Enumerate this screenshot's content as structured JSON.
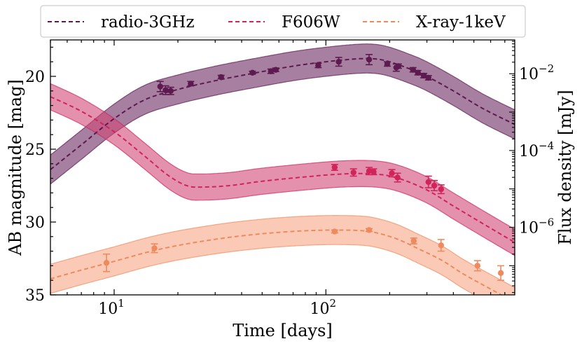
{
  "chart_data": {
    "type": "line",
    "xlabel": "Time [days]",
    "ylabel_left": "AB magnitude [mag]",
    "ylabel_right": "Flux density [mJy]",
    "xscale": "log",
    "xlim": [
      5,
      780
    ],
    "ylim_left": [
      35,
      17.5
    ],
    "ylim_right_log10": [
      -7.76,
      -1.12
    ],
    "x_tick_labels": [
      {
        "value": 10,
        "base": "10",
        "exp": "1"
      },
      {
        "value": 100,
        "base": "10",
        "exp": "2"
      }
    ],
    "y_left_ticks": [
      20,
      25,
      30,
      35
    ],
    "y_left_tick_labels": [
      "20",
      "25",
      "30",
      "35"
    ],
    "y_right_tick_labels": [
      {
        "log10": -2,
        "base": "10",
        "exp": "−2"
      },
      {
        "log10": -4,
        "base": "10",
        "exp": "−4"
      },
      {
        "log10": -6,
        "base": "10",
        "exp": "−6"
      }
    ],
    "grid": false,
    "legend_position": "top-center-outside",
    "series": [
      {
        "name": "radio-3GHz",
        "color": "#5c1a4e",
        "band_color": "#6b2a62",
        "model": {
          "x": [
            5,
            7,
            10,
            14,
            20,
            30,
            45,
            70,
            100,
            140,
            170,
            200,
            250,
            300,
            400,
            550,
            780
          ],
          "y": [
            26.4,
            24.7,
            22.9,
            21.6,
            20.9,
            20.3,
            19.8,
            19.3,
            19.0,
            18.8,
            18.8,
            19.0,
            19.5,
            20.0,
            21.0,
            22.2,
            23.3
          ]
        },
        "band_halfwidth": 1.0,
        "points": {
          "x": [
            16.5,
            17.5,
            18.5,
            23,
            32,
            45,
            55,
            58,
            92,
            115,
            160,
            195,
            215,
            220,
            258,
            272,
            290,
            305
          ],
          "y": [
            20.7,
            20.95,
            21.0,
            20.5,
            20.05,
            19.75,
            19.65,
            19.55,
            19.25,
            19.0,
            18.85,
            19.15,
            19.4,
            19.3,
            19.55,
            19.75,
            19.95,
            20.1
          ],
          "err": [
            0.35,
            0.3,
            0.25,
            0.15,
            0.12,
            0.1,
            0.15,
            0.12,
            0.15,
            0.3,
            0.35,
            0.15,
            0.25,
            0.15,
            0.15,
            0.15,
            0.15,
            0.15
          ]
        }
      },
      {
        "name": "F606W",
        "color": "#d0245a",
        "band_color": "#d24878",
        "model": {
          "x": [
            5,
            7,
            10,
            14,
            18,
            22,
            26,
            35,
            50,
            80,
            120,
            170,
            220,
            300,
            400,
            550,
            780
          ],
          "y": [
            21.4,
            22.4,
            23.8,
            25.5,
            26.8,
            27.5,
            27.6,
            27.5,
            27.2,
            26.9,
            26.7,
            26.7,
            27.0,
            27.8,
            28.9,
            30.1,
            31.4
          ]
        },
        "band_halfwidth": 0.9,
        "points": {
          "x": [
            110,
            135,
            160,
            168,
            205,
            218,
            305,
            325,
            350
          ],
          "y": [
            26.25,
            26.6,
            26.5,
            26.55,
            26.65,
            26.95,
            27.25,
            27.5,
            27.75
          ],
          "err": [
            0.2,
            0.25,
            0.25,
            0.2,
            0.25,
            0.3,
            0.4,
            0.35,
            0.3
          ]
        }
      },
      {
        "name": "X-ray-1keV",
        "color": "#ef8a5e",
        "band_color": "#f6a785",
        "model": {
          "x": [
            5,
            7,
            10,
            15,
            22,
            35,
            55,
            80,
            110,
            150,
            180,
            220,
            270,
            350,
            450,
            600,
            780
          ],
          "y": [
            33.9,
            33.3,
            32.7,
            32.0,
            31.5,
            31.05,
            30.75,
            30.6,
            30.55,
            30.6,
            30.8,
            31.2,
            31.8,
            32.6,
            33.6,
            34.6,
            35.5
          ]
        },
        "band_halfwidth": 1.0,
        "points": {
          "x": [
            9.2,
            15.5,
            110,
            160,
            260,
            350,
            520,
            670
          ],
          "y": [
            32.8,
            31.8,
            30.65,
            30.55,
            31.3,
            31.6,
            33.0,
            33.5
          ],
          "err": [
            0.6,
            0.3,
            0.1,
            0.1,
            0.2,
            0.4,
            0.35,
            0.5
          ]
        }
      }
    ]
  }
}
